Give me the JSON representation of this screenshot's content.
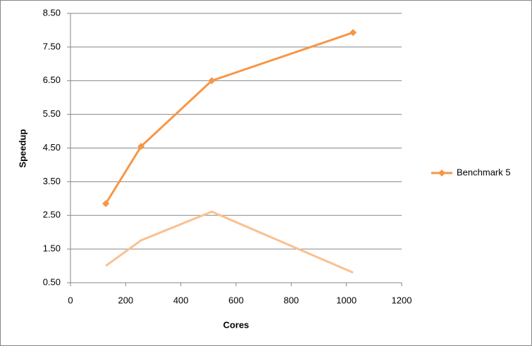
{
  "chart_data": {
    "type": "line",
    "x_label": "Cores",
    "y_label": "Speedup",
    "series": [
      {
        "name": "Benchmark 5",
        "color": "#f79646",
        "marker": "diamond",
        "x": [
          128,
          256,
          512,
          1024
        ],
        "values": [
          2.85,
          4.55,
          6.5,
          7.93
        ]
      },
      {
        "color": "#fac08f",
        "x": [
          128,
          256,
          512,
          1024
        ],
        "values": [
          1.0,
          1.76,
          2.61,
          0.8
        ]
      }
    ],
    "xlim": [
      0,
      1200
    ],
    "xticks": [
      0,
      200,
      400,
      600,
      800,
      1000,
      1200
    ],
    "ylim": [
      0.5,
      8.5
    ],
    "yticks": [
      {
        "value": 0.5,
        "label": "0.50"
      },
      {
        "value": 1.5,
        "label": "1.50"
      },
      {
        "value": 2.5,
        "label": "2.50"
      },
      {
        "value": 3.5,
        "label": "3.50"
      },
      {
        "value": 4.5,
        "label": "4.50"
      },
      {
        "value": 5.5,
        "label": "5.50"
      },
      {
        "value": 6.5,
        "label": "6.50"
      },
      {
        "value": 7.5,
        "label": "7.50"
      },
      {
        "value": 8.5,
        "label": "8.50"
      }
    ],
    "grid": true,
    "legend": "right"
  }
}
